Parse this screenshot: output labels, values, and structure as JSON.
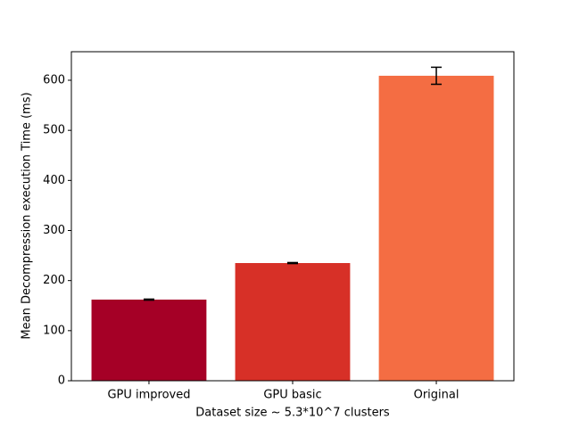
{
  "chart_data": {
    "type": "bar",
    "xlabel": "Dataset size ~ 5.3*10^7 clusters",
    "ylabel": "Mean Decompression execution Time (ms)",
    "categories": [
      "GPU improved",
      "GPU basic",
      "Original"
    ],
    "values": [
      162,
      235,
      609
    ],
    "errors": [
      1,
      1,
      17
    ],
    "colors": [
      "#a50026",
      "#d73027",
      "#f46d43"
    ],
    "ylim": [
      0,
      657
    ],
    "yticks": [
      0,
      100,
      200,
      300,
      400,
      500,
      600
    ],
    "grid": false
  }
}
